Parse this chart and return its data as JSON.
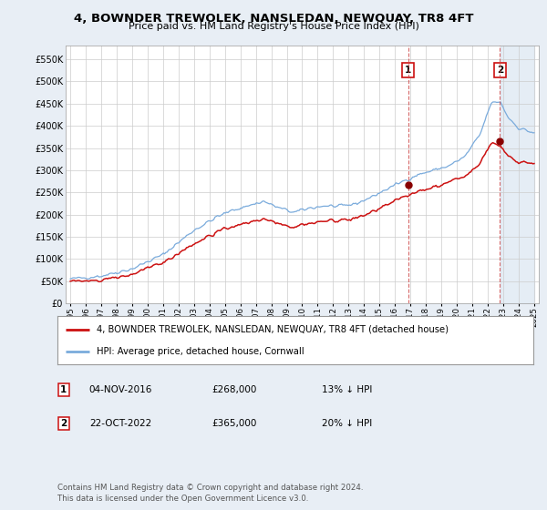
{
  "title": "4, BOWNDER TREWOLEK, NANSLEDAN, NEWQUAY, TR8 4FT",
  "subtitle": "Price paid vs. HM Land Registry's House Price Index (HPI)",
  "ylim": [
    0,
    580000
  ],
  "yticks": [
    0,
    50000,
    100000,
    150000,
    200000,
    250000,
    300000,
    350000,
    400000,
    450000,
    500000,
    550000
  ],
  "ytick_labels": [
    "£0",
    "£50K",
    "£100K",
    "£150K",
    "£200K",
    "£250K",
    "£300K",
    "£350K",
    "£400K",
    "£450K",
    "£500K",
    "£550K"
  ],
  "background_color": "#e8eef5",
  "plot_bg_color": "#ffffff",
  "grid_color": "#cccccc",
  "hpi_color": "#7aabdc",
  "price_color": "#cc1111",
  "sale1_price": 268000,
  "sale1_year": 2016.84,
  "sale2_price": 365000,
  "sale2_year": 2022.79,
  "legend_label_red": "4, BOWNDER TREWOLEK, NANSLEDAN, NEWQUAY, TR8 4FT (detached house)",
  "legend_label_blue": "HPI: Average price, detached house, Cornwall",
  "note1_label": "1",
  "note1_date": "04-NOV-2016",
  "note1_price": "£268,000",
  "note1_pct": "13% ↓ HPI",
  "note2_label": "2",
  "note2_date": "22-OCT-2022",
  "note2_price": "£365,000",
  "note2_pct": "20% ↓ HPI",
  "footer": "Contains HM Land Registry data © Crown copyright and database right 2024.\nThis data is licensed under the Open Government Licence v3.0."
}
